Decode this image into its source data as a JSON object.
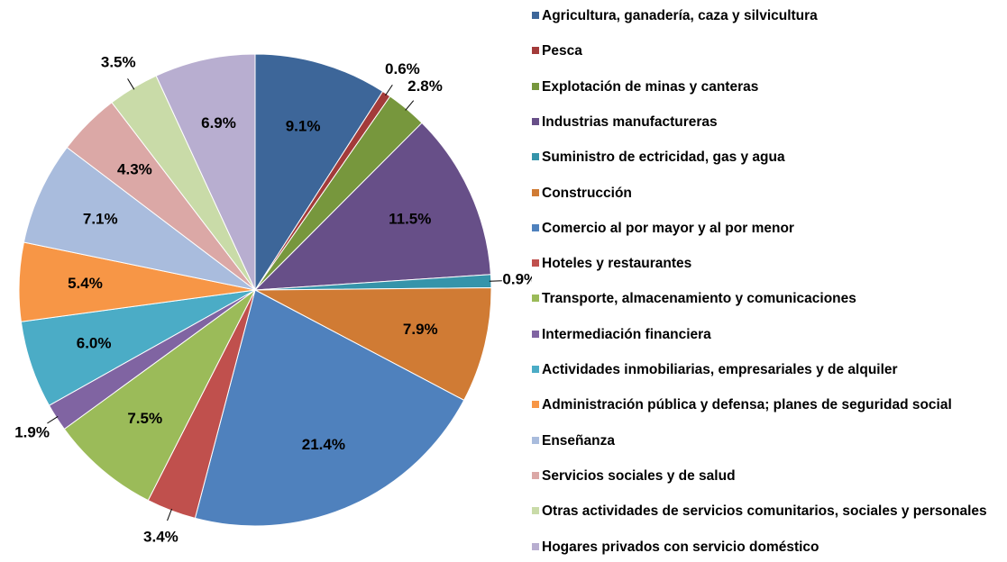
{
  "chart_data": {
    "type": "pie",
    "categories": [
      "Agricultura, ganadería, caza y silvicultura",
      "Pesca",
      "Explotación de minas y canteras",
      "Industrias manufactureras",
      "Suministro de ectricidad, gas y agua",
      "Construcción",
      "Comercio al por mayor y al por menor",
      "Hoteles y restaurantes",
      "Transporte, almacenamiento y comunicaciones",
      "Intermediación financiera",
      "Actividades inmobiliarias, empresariales y de alquiler",
      "Administración pública y defensa; planes de seguridad social",
      "Enseñanza",
      "Servicios sociales y de salud",
      "Otras actividades de servicios comunitarios, sociales y personales",
      "Hogares privados con servicio doméstico"
    ],
    "values": [
      9.1,
      0.6,
      2.8,
      11.5,
      0.9,
      7.9,
      21.4,
      3.4,
      7.5,
      1.9,
      6.0,
      5.4,
      7.1,
      4.3,
      3.5,
      6.9
    ],
    "value_labels": [
      "9.1%",
      "0.6%",
      "2.8%",
      "11.5%",
      "0.9%",
      "7.9%",
      "21.4%",
      "3.4%",
      "7.5%",
      "1.9%",
      "6.0%",
      "5.4%",
      "7.1%",
      "4.3%",
      "3.5%",
      "6.9%"
    ],
    "colors": [
      "#3d6699",
      "#a33b3a",
      "#77973d",
      "#674f88",
      "#3594aa",
      "#d07b34",
      "#4f81bd",
      "#c0504d",
      "#9bbb59",
      "#8064a2",
      "#4bacc6",
      "#f79646",
      "#a9bcdd",
      "#dba8a6",
      "#c9dba8",
      "#b8aed0"
    ],
    "legend": "right"
  }
}
